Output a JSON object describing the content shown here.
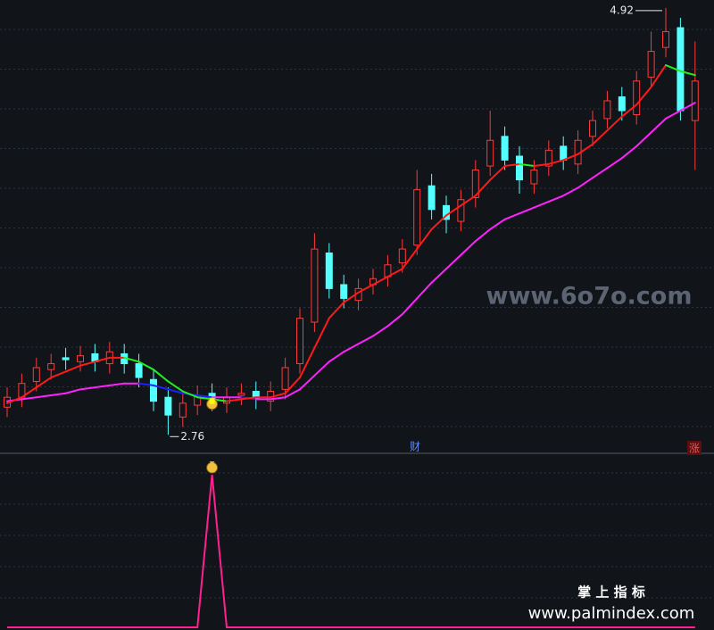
{
  "chart_data": {
    "type": "candlestick",
    "candles": {
      "open": [
        2.9,
        2.95,
        3.03,
        3.09,
        3.15,
        3.13,
        3.17,
        3.12,
        3.17,
        3.12,
        3.04,
        2.95,
        2.85,
        2.91,
        2.97,
        2.92,
        2.96,
        2.98,
        2.93,
        2.99,
        3.12,
        3.33,
        3.68,
        3.52,
        3.44,
        3.52,
        3.56,
        3.63,
        3.72,
        4.02,
        3.92,
        3.84,
        3.96,
        4.12,
        4.27,
        4.17,
        4.03,
        4.12,
        4.22,
        4.13,
        4.27,
        4.36,
        4.47,
        4.38,
        4.57,
        4.72,
        4.82,
        4.35
      ],
      "high": [
        3.0,
        3.07,
        3.15,
        3.17,
        3.2,
        3.21,
        3.22,
        3.23,
        3.22,
        3.17,
        3.09,
        3.0,
        2.97,
        3.01,
        3.02,
        3.0,
        3.02,
        3.03,
        3.03,
        3.15,
        3.4,
        3.78,
        3.73,
        3.57,
        3.55,
        3.6,
        3.67,
        3.75,
        4.1,
        4.08,
        3.97,
        4.0,
        4.15,
        4.4,
        4.32,
        4.22,
        4.15,
        4.25,
        4.27,
        4.3,
        4.4,
        4.5,
        4.52,
        4.6,
        4.8,
        4.92,
        4.87,
        4.75
      ],
      "low": [
        2.85,
        2.9,
        2.98,
        3.04,
        3.09,
        3.08,
        3.08,
        3.07,
        3.07,
        3.0,
        2.88,
        2.76,
        2.8,
        2.86,
        2.88,
        2.87,
        2.91,
        2.89,
        2.88,
        2.94,
        3.07,
        3.28,
        3.45,
        3.4,
        3.39,
        3.47,
        3.51,
        3.58,
        3.67,
        3.85,
        3.78,
        3.79,
        3.91,
        4.07,
        4.1,
        3.98,
        3.98,
        4.07,
        4.1,
        4.08,
        4.22,
        4.31,
        4.35,
        4.33,
        4.52,
        4.67,
        4.35,
        4.1
      ],
      "close": [
        2.95,
        3.02,
        3.1,
        3.12,
        3.14,
        3.16,
        3.13,
        3.18,
        3.12,
        3.05,
        2.93,
        2.86,
        2.92,
        2.96,
        2.93,
        2.95,
        2.97,
        2.94,
        2.98,
        3.1,
        3.35,
        3.7,
        3.5,
        3.45,
        3.5,
        3.55,
        3.62,
        3.7,
        4.0,
        3.9,
        3.85,
        3.95,
        4.1,
        4.25,
        4.15,
        4.05,
        4.1,
        4.2,
        4.15,
        4.25,
        4.35,
        4.45,
        4.4,
        4.55,
        4.7,
        4.8,
        4.4,
        4.55
      ]
    },
    "up_color": "#ff3a3a",
    "down_color": "#54ffff",
    "ma_short": {
      "values": [
        2.92,
        2.95,
        3.0,
        3.05,
        3.08,
        3.11,
        3.13,
        3.15,
        3.15,
        3.13,
        3.09,
        3.03,
        2.98,
        2.95,
        2.94,
        2.93,
        2.94,
        2.95,
        2.95,
        2.97,
        3.05,
        3.2,
        3.35,
        3.43,
        3.48,
        3.52,
        3.56,
        3.6,
        3.7,
        3.8,
        3.87,
        3.92,
        3.97,
        4.05,
        4.12,
        4.13,
        4.12,
        4.13,
        4.15,
        4.18,
        4.23,
        4.3,
        4.37,
        4.43,
        4.52,
        4.63,
        4.6,
        4.58
      ],
      "rise_color": "#ff1a1a",
      "fall_color": "#22ee22"
    },
    "ma_long": {
      "values": [
        2.93,
        2.94,
        2.95,
        2.96,
        2.97,
        2.99,
        3.0,
        3.01,
        3.02,
        3.02,
        3.01,
        2.99,
        2.97,
        2.96,
        2.95,
        2.95,
        2.95,
        2.94,
        2.94,
        2.95,
        2.99,
        3.06,
        3.13,
        3.18,
        3.22,
        3.26,
        3.31,
        3.37,
        3.45,
        3.53,
        3.6,
        3.67,
        3.74,
        3.8,
        3.85,
        3.88,
        3.91,
        3.94,
        3.97,
        4.01,
        4.06,
        4.11,
        4.16,
        4.22,
        4.29,
        4.36,
        4.4,
        4.44
      ],
      "rise_color": "#ff22ff",
      "fall_color": "#2020ff"
    },
    "ylim": [
      2.68,
      4.96
    ],
    "signal": {
      "values": [
        0,
        0,
        0,
        0,
        0,
        0,
        0,
        0,
        0,
        0,
        0,
        0,
        0,
        0,
        1,
        0,
        0,
        0,
        0,
        0,
        0,
        0,
        0,
        0,
        0,
        0,
        0,
        0,
        0,
        0,
        0,
        0,
        0,
        0,
        0,
        0,
        0,
        0,
        0,
        0,
        0,
        0,
        0,
        0,
        0,
        0,
        0,
        0
      ],
      "color": "#ff2090",
      "ylim": [
        0,
        1.1
      ]
    },
    "badges": [
      "财",
      "涨"
    ],
    "watermarks": [
      "www.6o7o.com",
      "掌 上 指 标",
      "www.palmindex.com"
    ]
  }
}
